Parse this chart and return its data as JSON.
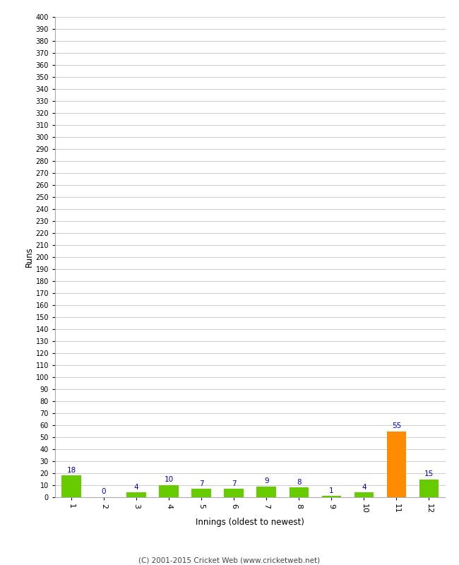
{
  "innings": [
    1,
    2,
    3,
    4,
    5,
    6,
    7,
    8,
    9,
    10,
    11,
    12
  ],
  "runs": [
    18,
    0,
    4,
    10,
    7,
    7,
    9,
    8,
    1,
    4,
    55,
    15
  ],
  "bar_colors": [
    "#66cc00",
    "#66cc00",
    "#66cc00",
    "#66cc00",
    "#66cc00",
    "#66cc00",
    "#66cc00",
    "#66cc00",
    "#66cc00",
    "#66cc00",
    "#ff8c00",
    "#66cc00"
  ],
  "xlabel": "Innings (oldest to newest)",
  "ylabel": "Runs",
  "ylim": [
    0,
    400
  ],
  "yticks": [
    0,
    10,
    20,
    30,
    40,
    50,
    60,
    70,
    80,
    90,
    100,
    110,
    120,
    130,
    140,
    150,
    160,
    170,
    180,
    190,
    200,
    210,
    220,
    230,
    240,
    250,
    260,
    270,
    280,
    290,
    300,
    310,
    320,
    330,
    340,
    350,
    360,
    370,
    380,
    390,
    400
  ],
  "value_label_color": "#0000cc",
  "background_color": "#ffffff",
  "grid_color": "#cccccc",
  "footer": "(C) 2001-2015 Cricket Web (www.cricketweb.net)",
  "bar_width": 0.6,
  "figwidth": 6.5,
  "figheight": 8.0,
  "dpi": 100
}
